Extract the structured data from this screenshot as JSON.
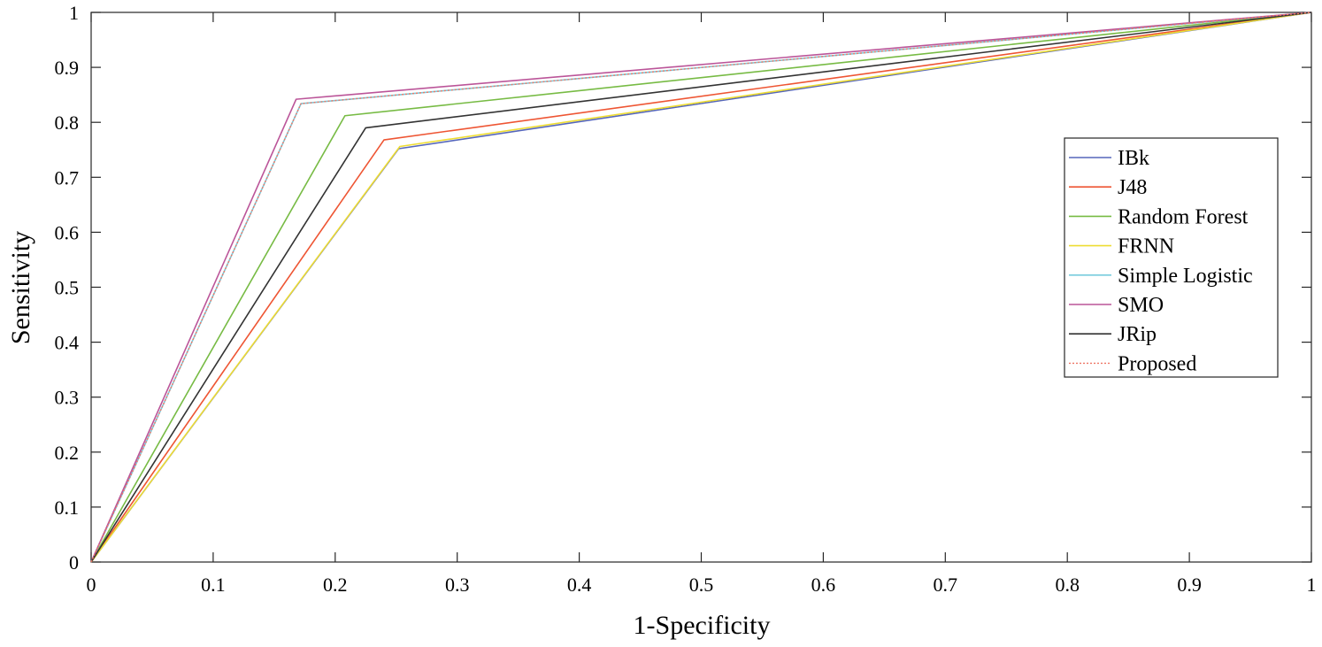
{
  "chart_data": {
    "type": "line",
    "title": "",
    "xlabel": "1-Specificity",
    "ylabel": "Sensitivity",
    "xlim": [
      0,
      1
    ],
    "ylim": [
      0,
      1
    ],
    "grid": false,
    "legend_position": "right",
    "xticks": [
      "0",
      "0.1",
      "0.2",
      "0.3",
      "0.4",
      "0.5",
      "0.6",
      "0.7",
      "0.8",
      "0.9",
      "1"
    ],
    "yticks": [
      "0",
      "0.1",
      "0.2",
      "0.3",
      "0.4",
      "0.5",
      "0.6",
      "0.7",
      "0.8",
      "0.9",
      "1"
    ],
    "series": [
      {
        "name": "IBk",
        "color": "#5566bb",
        "dash": false,
        "x": [
          0,
          0.252,
          1
        ],
        "y": [
          0,
          0.752,
          1
        ]
      },
      {
        "name": "J48",
        "color": "#ee5533",
        "dash": false,
        "x": [
          0,
          0.24,
          1
        ],
        "y": [
          0,
          0.768,
          1
        ]
      },
      {
        "name": "Random Forest",
        "color": "#77bb44",
        "dash": false,
        "x": [
          0,
          0.208,
          1
        ],
        "y": [
          0,
          0.812,
          1
        ]
      },
      {
        "name": "FRNN",
        "color": "#eedd33",
        "dash": false,
        "x": [
          0,
          0.253,
          1
        ],
        "y": [
          0,
          0.756,
          1
        ]
      },
      {
        "name": "Simple Logistic",
        "color": "#77ccdd",
        "dash": false,
        "x": [
          0,
          0.172,
          1
        ],
        "y": [
          0,
          0.834,
          1
        ]
      },
      {
        "name": "SMO",
        "color": "#bb5599",
        "dash": false,
        "x": [
          0,
          0.168,
          1
        ],
        "y": [
          0,
          0.842,
          1
        ]
      },
      {
        "name": "JRip",
        "color": "#333333",
        "dash": false,
        "x": [
          0,
          0.225,
          1
        ],
        "y": [
          0,
          0.79,
          1
        ]
      },
      {
        "name": "Proposed",
        "color": "#ee7766",
        "dash": true,
        "x": [
          0,
          0.172,
          1
        ],
        "y": [
          0,
          0.834,
          1
        ]
      }
    ]
  }
}
